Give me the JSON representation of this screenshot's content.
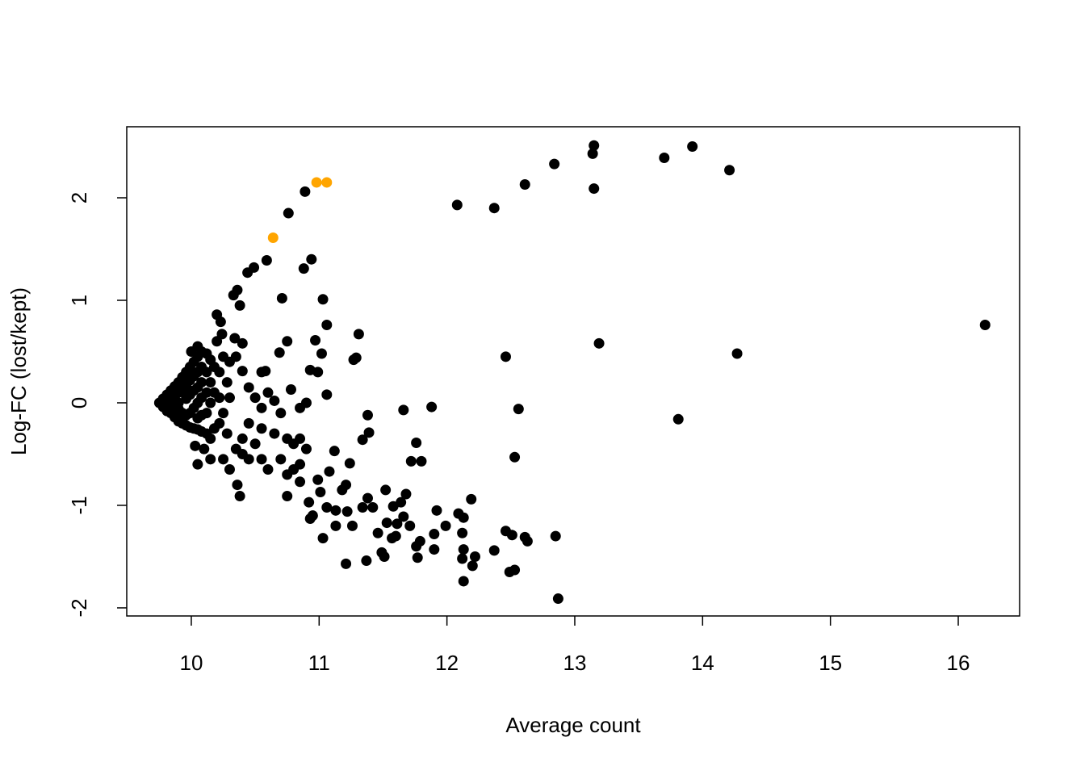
{
  "chart_data": {
    "type": "scatter",
    "x_label": "Average count",
    "y_label": "Log-FC (lost/kept)",
    "xlim": [
      9.495,
      16.48
    ],
    "ylim": [
      -2.079,
      2.693
    ],
    "xticks": [
      10,
      11,
      12,
      13,
      14,
      15,
      16
    ],
    "yticks": [
      -2,
      -1,
      0,
      1,
      2
    ],
    "series": [
      {
        "color": "#000000",
        "x": [
          13.15,
          13.92,
          13.14,
          13.7,
          12.84,
          14.21,
          12.61,
          13.15,
          10.89,
          12.08,
          12.37,
          10.76,
          10.59,
          10.94,
          10.88,
          10.49,
          10.44,
          10.36,
          10.33,
          10.71,
          11.03,
          10.38,
          16.21,
          11.06,
          10.2,
          10.23,
          11.31,
          13.19,
          10.75,
          14.27,
          12.46,
          11.29,
          11.27,
          10.97,
          11.02,
          10.69,
          10.93,
          10.99,
          10.4,
          10.58,
          11.06,
          10.78,
          11.88,
          11.66,
          12.56,
          13.81,
          11.38,
          11.39,
          11.34,
          11.76,
          11.12,
          12.53,
          11.72,
          11.8,
          11.24,
          11.08,
          10.99,
          10.85,
          11.21,
          11.18,
          11.01,
          10.36,
          10.38,
          10.75,
          11.52,
          11.38,
          11.68,
          12.19,
          10.92,
          11.64,
          11.58,
          11.06,
          11.13,
          11.22,
          11.34,
          11.42,
          11.92,
          12.09,
          12.13,
          11.66,
          10.93,
          10.95,
          11.99,
          11.71,
          11.13,
          11.26,
          11.61,
          11.53,
          11.46,
          11.57,
          11.6,
          11.9,
          12.12,
          11.03,
          12.46,
          12.51,
          12.61,
          12.63,
          12.85,
          11.79,
          11.76,
          12.13,
          12.37,
          11.49,
          11.51,
          11.9,
          12.22,
          12.12,
          11.77,
          11.37,
          11.21,
          12.2,
          12.53,
          12.49,
          12.13,
          12.87,
          9.75,
          9.78,
          9.78,
          9.81,
          9.81,
          9.81,
          9.84,
          9.84,
          9.84,
          9.87,
          9.87,
          9.87,
          9.87,
          9.9,
          9.9,
          9.9,
          9.9,
          9.9,
          9.93,
          9.93,
          9.93,
          9.93,
          9.96,
          9.96,
          9.96,
          9.96,
          9.96,
          9.99,
          9.99,
          9.99,
          9.99,
          9.99,
          10.02,
          10.02,
          10.02,
          10.02,
          10.02,
          10.05,
          10.05,
          10.05,
          10.05,
          10.05,
          10.05,
          10.08,
          10.08,
          10.08,
          10.08,
          10.08,
          10.08,
          10.12,
          10.12,
          10.12,
          10.12,
          10.12,
          10.15,
          10.15,
          10.15,
          10.15,
          10.18,
          10.18,
          10.18,
          10.22,
          10.22,
          10.22,
          10.25,
          10.25,
          10.28,
          10.28,
          10.3,
          10.03,
          10.1,
          10.15,
          10.05,
          10.0,
          10.05,
          10.2,
          10.24,
          10.34,
          10.4,
          10.35,
          10.3,
          10.45,
          10.5,
          10.55,
          10.45,
          10.4,
          10.35,
          10.5,
          10.55,
          10.6,
          10.45,
          10.25,
          10.3,
          10.4,
          10.55,
          10.6,
          10.65,
          10.7,
          10.65,
          10.75,
          10.8,
          10.85,
          10.9,
          10.7,
          10.75,
          10.85,
          10.9,
          10.85,
          10.8,
          10.55
        ],
        "values": [
          2.51,
          2.5,
          2.43,
          2.39,
          2.33,
          2.27,
          2.13,
          2.09,
          2.06,
          1.93,
          1.9,
          1.85,
          1.39,
          1.4,
          1.31,
          1.32,
          1.27,
          1.1,
          1.05,
          1.02,
          1.01,
          0.95,
          0.76,
          0.76,
          0.86,
          0.79,
          0.67,
          0.58,
          0.6,
          0.48,
          0.45,
          0.44,
          0.42,
          0.61,
          0.48,
          0.49,
          0.32,
          0.3,
          0.31,
          0.31,
          0.08,
          0.13,
          -0.04,
          -0.07,
          -0.06,
          -0.16,
          -0.12,
          -0.29,
          -0.36,
          -0.39,
          -0.47,
          -0.53,
          -0.57,
          -0.57,
          -0.59,
          -0.67,
          -0.75,
          -0.77,
          -0.8,
          -0.85,
          -0.87,
          -0.8,
          -0.91,
          -0.91,
          -0.85,
          -0.93,
          -0.89,
          -0.94,
          -0.97,
          -0.97,
          -1.01,
          -1.02,
          -1.05,
          -1.06,
          -1.02,
          -1.02,
          -1.05,
          -1.08,
          -1.12,
          -1.11,
          -1.13,
          -1.1,
          -1.2,
          -1.2,
          -1.2,
          -1.2,
          -1.18,
          -1.17,
          -1.27,
          -1.32,
          -1.3,
          -1.28,
          -1.27,
          -1.32,
          -1.25,
          -1.29,
          -1.31,
          -1.35,
          -1.3,
          -1.35,
          -1.4,
          -1.43,
          -1.44,
          -1.46,
          -1.5,
          -1.43,
          -1.5,
          -1.52,
          -1.51,
          -1.54,
          -1.57,
          -1.59,
          -1.63,
          -1.65,
          -1.74,
          -1.91,
          0,
          0.04,
          -0.04,
          0.08,
          -0.08,
          0,
          0.12,
          -0.1,
          0.03,
          0.16,
          -0.14,
          0.06,
          -0.05,
          0.2,
          -0.18,
          0.1,
          -0.06,
          0,
          0.25,
          -0.2,
          0.13,
          -0.1,
          0.3,
          -0.22,
          0.17,
          0.04,
          -0.12,
          0.35,
          -0.24,
          0.22,
          0.08,
          -0.1,
          0.4,
          -0.25,
          0.26,
          0.12,
          -0.05,
          0.45,
          -0.26,
          0.3,
          0.15,
          0,
          -0.15,
          0.5,
          -0.28,
          0.35,
          0.2,
          0.05,
          -0.12,
          0.48,
          -0.3,
          0.3,
          0.1,
          -0.1,
          0.42,
          -0.35,
          0.2,
          0,
          0.35,
          -0.25,
          0.1,
          0.3,
          -0.2,
          0.05,
          0.45,
          -0.1,
          0.2,
          -0.3,
          0.05,
          -0.42,
          -0.45,
          -0.55,
          -0.6,
          0.5,
          0.55,
          0.6,
          0.67,
          0.63,
          0.58,
          0.45,
          0.4,
          0.15,
          0.05,
          -0.05,
          -0.2,
          -0.35,
          -0.45,
          -0.4,
          -0.55,
          -0.65,
          -0.55,
          -0.55,
          -0.65,
          -0.5,
          0.3,
          0.1,
          0.02,
          -0.1,
          -0.3,
          -0.35,
          -0.4,
          -0.35,
          -0.45,
          -0.55,
          -0.7,
          -0.6,
          0.0,
          -0.05,
          -0.65,
          -0.25
        ]
      },
      {
        "color": "#ffa500",
        "x": [
          10.64,
          10.98,
          11.06
        ],
        "values": [
          1.61,
          2.15,
          2.15
        ]
      }
    ]
  }
}
